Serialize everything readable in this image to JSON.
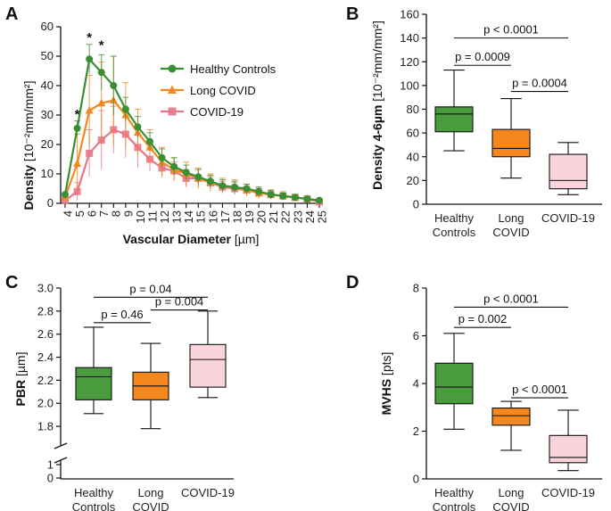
{
  "colors": {
    "healthy": "#3a8f34",
    "long": "#f5871f",
    "covid": "#e8768a",
    "covid_fill": "#fad4db",
    "long_fill": "#f5871f",
    "healthy_fill": "#4a9a3e"
  },
  "panels": {
    "a": "A",
    "b": "B",
    "c": "C",
    "d": "D"
  },
  "chart_data": [
    {
      "id": "A",
      "type": "line",
      "xlabel": "Vascular Diameter",
      "xunit": "[µm]",
      "ylabel": "Density",
      "yunit": "[10⁻²mm/mm²]",
      "ylim": [
        0,
        60
      ],
      "yticks": [
        "0",
        "10",
        "20",
        "30",
        "40",
        "50",
        "60"
      ],
      "x": [
        "4",
        "5",
        "6",
        "7",
        "8",
        "9",
        "10",
        "11",
        "12",
        "13",
        "14",
        "15",
        "16",
        "17",
        "18",
        "19",
        "20",
        "21",
        "22",
        "23",
        "24",
        "25"
      ],
      "legend": "top-right",
      "series": [
        {
          "name": "Healthy Controls",
          "color_key": "healthy",
          "marker": "circle",
          "values": [
            3,
            25.5,
            49,
            44.5,
            40,
            32,
            26,
            21,
            15.5,
            12.5,
            10.5,
            9,
            7.5,
            6,
            5.5,
            5,
            4,
            3,
            2.5,
            2,
            1.5,
            1
          ],
          "err": [
            0.5,
            2.5,
            5,
            6,
            10,
            4,
            3.5,
            3,
            3,
            3,
            2.5,
            2.5,
            2,
            2,
            2,
            1.5,
            1.5,
            1.5,
            1,
            1,
            0.8,
            0.5
          ]
        },
        {
          "name": "Long COVID",
          "color_key": "long",
          "marker": "triangle",
          "values": [
            2,
            13.5,
            31.5,
            34,
            35,
            30,
            24,
            19,
            14,
            11.5,
            10,
            8.5,
            7,
            6,
            5.5,
            4.5,
            3.5,
            3,
            2.5,
            2,
            1.5,
            1
          ],
          "err": [
            1,
            10,
            12,
            14,
            15,
            11,
            8,
            6,
            5,
            4,
            4,
            3.5,
            3,
            2.5,
            2.5,
            2,
            2,
            1.5,
            1.5,
            1,
            1,
            0.5
          ]
        },
        {
          "name": "COVID-19",
          "color_key": "covid",
          "marker": "square",
          "values": [
            1,
            4,
            17,
            21.5,
            25,
            23.5,
            19,
            15,
            12,
            11,
            8.5,
            8.5,
            7,
            5.5,
            5,
            4.5,
            3.5,
            3,
            2.5,
            2,
            1.5,
            0.5
          ],
          "err": [
            1,
            3,
            8,
            10,
            8,
            8,
            7,
            4,
            3,
            3,
            3,
            3,
            2,
            2,
            2,
            2,
            1.5,
            1.5,
            1,
            1,
            1,
            0.5
          ]
        }
      ],
      "annotations": [
        "*",
        "*",
        "*"
      ]
    },
    {
      "id": "B",
      "type": "box",
      "ylabel": "Density 4-6µm",
      "yunit": "[10⁻²mm/mm²]",
      "ylim": [
        0,
        160
      ],
      "yticks": [
        "0",
        "20",
        "40",
        "60",
        "80",
        "100",
        "120",
        "140",
        "160"
      ],
      "categories": [
        "Healthy Controls",
        "Long COVID",
        "COVID-19"
      ],
      "cat_lines": [
        [
          "Healthy",
          "Controls"
        ],
        [
          "Long",
          "COVID"
        ],
        [
          "COVID-19"
        ]
      ],
      "boxes": [
        {
          "min": 45,
          "q1": 61,
          "median": 76,
          "q3": 82,
          "max": 113,
          "color_key": "healthy_fill"
        },
        {
          "min": 22,
          "q1": 40,
          "median": 47,
          "q3": 63,
          "max": 89,
          "color_key": "long_fill"
        },
        {
          "min": 8,
          "q1": 13,
          "median": 20,
          "q3": 42,
          "max": 52,
          "color_key": "covid_fill"
        }
      ],
      "comparisons": [
        {
          "from": 0,
          "to": 2,
          "label": "p < 0.0001",
          "y": 140
        },
        {
          "from": 0,
          "to": 1,
          "label": "p = 0.0009",
          "y": 117
        },
        {
          "from": 1,
          "to": 2,
          "label": "p = 0.0004",
          "y": 95
        }
      ]
    },
    {
      "id": "C",
      "type": "box",
      "ylabel": "PBR",
      "yunit": "[µm]",
      "ylim": [
        1.7,
        3.0
      ],
      "yticks": [
        "1.8",
        "2.0",
        "2.2",
        "2.4",
        "2.6",
        "2.8",
        "3.0"
      ],
      "lower_ticks": [
        "1",
        "0"
      ],
      "categories": [
        "Healthy Controls",
        "Long COVID",
        "COVID-19"
      ],
      "cat_lines": [
        [
          "Healthy",
          "Controls"
        ],
        [
          "Long",
          "COVID"
        ],
        [
          "COVID-19"
        ]
      ],
      "boxes": [
        {
          "min": 1.91,
          "q1": 2.03,
          "median": 2.23,
          "q3": 2.31,
          "max": 2.66,
          "color_key": "healthy_fill"
        },
        {
          "min": 1.78,
          "q1": 2.03,
          "median": 2.15,
          "q3": 2.27,
          "max": 2.52,
          "color_key": "long_fill"
        },
        {
          "min": 2.05,
          "q1": 2.14,
          "median": 2.38,
          "q3": 2.51,
          "max": 2.8,
          "color_key": "covid_fill"
        }
      ],
      "comparisons": [
        {
          "from": 0,
          "to": 2,
          "label": "p = 0.04",
          "y": 2.92
        },
        {
          "from": 0,
          "to": 1,
          "label": "p = 0.46",
          "y": 2.7
        },
        {
          "from": 1,
          "to": 2,
          "label": "p = 0.004",
          "y": 2.81
        }
      ]
    },
    {
      "id": "D",
      "type": "box",
      "ylabel": "MVHS",
      "yunit": "[pts]",
      "ylim": [
        0,
        8
      ],
      "yticks": [
        "0",
        "2",
        "4",
        "6",
        "8"
      ],
      "categories": [
        "Healthy Controls",
        "Long COVID",
        "COVID-19"
      ],
      "cat_lines": [
        [
          "Healthy",
          "Controls"
        ],
        [
          "Long",
          "COVID"
        ],
        [
          "COVID-19"
        ]
      ],
      "boxes": [
        {
          "min": 2.08,
          "q1": 3.15,
          "median": 3.85,
          "q3": 4.85,
          "max": 6.1,
          "color_key": "healthy_fill"
        },
        {
          "min": 1.2,
          "q1": 2.25,
          "median": 2.65,
          "q3": 2.97,
          "max": 3.25,
          "color_key": "long_fill"
        },
        {
          "min": 0.35,
          "q1": 0.68,
          "median": 0.9,
          "q3": 1.82,
          "max": 2.88,
          "color_key": "covid_fill"
        }
      ],
      "comparisons": [
        {
          "from": 0,
          "to": 2,
          "label": "p < 0.0001",
          "y": 7.2
        },
        {
          "from": 0,
          "to": 1,
          "label": "p = 0.002",
          "y": 6.35
        },
        {
          "from": 1,
          "to": 2,
          "label": "p < 0.0001",
          "y": 3.4
        }
      ]
    }
  ]
}
